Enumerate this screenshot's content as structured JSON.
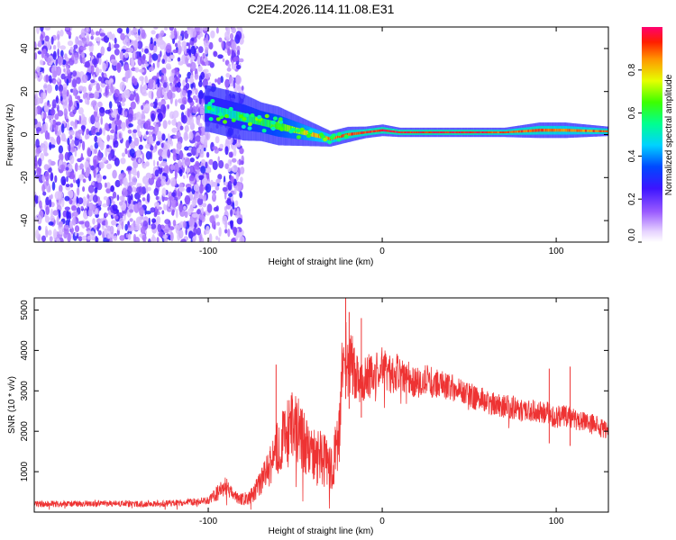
{
  "title": "C2E4.2026.114.11.08.E31",
  "chart_data": [
    {
      "type": "heatmap",
      "name": "spectrogram",
      "xlabel": "Height of straight line (km)",
      "ylabel": "Frequency (Hz)",
      "xlim": [
        -200,
        130
      ],
      "ylim": [
        -50,
        50
      ],
      "xticks": [
        -100,
        0,
        100
      ],
      "yticks": [
        -40,
        -20,
        0,
        20,
        40
      ],
      "colorbar": {
        "label": "Normalized spectral amplitude",
        "range": [
          0,
          1
        ],
        "ticks": [
          0.0,
          0.2,
          0.4,
          0.6,
          0.8
        ],
        "tick_labels": [
          "0.0",
          "0.2",
          "0.4",
          "0.6",
          "0.8"
        ]
      },
      "noise_region_km": [
        -200,
        -80
      ],
      "signal_track": {
        "x": [
          -100,
          -90,
          -80,
          -70,
          -60,
          -50,
          -40,
          -30,
          -20,
          -10,
          0,
          10,
          30,
          50,
          70,
          90,
          105,
          130
        ],
        "freq": [
          12,
          10,
          8,
          6,
          4,
          2,
          0,
          -2,
          0,
          1,
          2,
          1,
          1,
          1,
          1,
          2,
          2,
          1.5
        ],
        "width": [
          6,
          6,
          6,
          5,
          5,
          4,
          3,
          2,
          2,
          1.5,
          1.5,
          1.2,
          1.2,
          1.2,
          1.2,
          2,
          2,
          1.2
        ],
        "amplitude": [
          0.5,
          0.5,
          0.55,
          0.6,
          0.65,
          0.7,
          0.8,
          0.85,
          0.9,
          0.92,
          0.95,
          0.95,
          0.95,
          0.95,
          0.9,
          0.9,
          0.85,
          0.9
        ]
      }
    },
    {
      "type": "line",
      "name": "snr",
      "xlabel": "Height of straight line (km)",
      "ylabel": "SNR (10 * v/v)",
      "xlim": [
        -200,
        130
      ],
      "ylim": [
        0,
        5300
      ],
      "xticks": [
        -100,
        0,
        100
      ],
      "yticks": [
        1000,
        2000,
        3000,
        4000,
        5000
      ],
      "color": "#ee3333",
      "series": [
        {
          "name": "SNR",
          "x": [
            -200,
            -180,
            -160,
            -140,
            -120,
            -100,
            -95,
            -90,
            -85,
            -80,
            -75,
            -70,
            -65,
            -60,
            -55,
            -50,
            -45,
            -40,
            -35,
            -30,
            -25,
            -22,
            -20,
            -18,
            -15,
            -10,
            -5,
            0,
            5,
            10,
            15,
            20,
            25,
            30,
            35,
            40,
            45,
            50,
            55,
            60,
            65,
            70,
            75,
            80,
            85,
            90,
            95,
            100,
            105,
            110,
            115,
            120,
            125,
            130
          ],
          "y": [
            200,
            200,
            210,
            200,
            220,
            280,
            450,
            650,
            380,
            320,
            400,
            700,
            1100,
            1600,
            2000,
            2200,
            1700,
            1400,
            1300,
            1200,
            1500,
            4500,
            3500,
            3800,
            3400,
            3300,
            3400,
            3600,
            3400,
            3500,
            3300,
            3200,
            3250,
            3200,
            3150,
            3100,
            3000,
            2900,
            2800,
            2750,
            2650,
            2600,
            2600,
            2500,
            2500,
            2500,
            2450,
            2350,
            2400,
            2300,
            2250,
            2200,
            2100,
            2000
          ],
          "spread": [
            80,
            80,
            80,
            80,
            80,
            100,
            200,
            250,
            150,
            150,
            200,
            300,
            500,
            700,
            800,
            900,
            800,
            700,
            700,
            700,
            900,
            900,
            900,
            800,
            700,
            600,
            550,
            500,
            500,
            450,
            450,
            400,
            400,
            380,
            350,
            350,
            330,
            320,
            310,
            300,
            300,
            300,
            300,
            280,
            280,
            280,
            280,
            280,
            280,
            260,
            250,
            250,
            250,
            250
          ]
        }
      ],
      "spikes": [
        {
          "x": -61,
          "y": 3650
        },
        {
          "x": -21,
          "y": 5300
        },
        {
          "x": -19,
          "y": 4950
        },
        {
          "x": -12,
          "y": 4800
        },
        {
          "x": 96,
          "y": 3550
        },
        {
          "x": 108,
          "y": 3600
        }
      ]
    }
  ]
}
